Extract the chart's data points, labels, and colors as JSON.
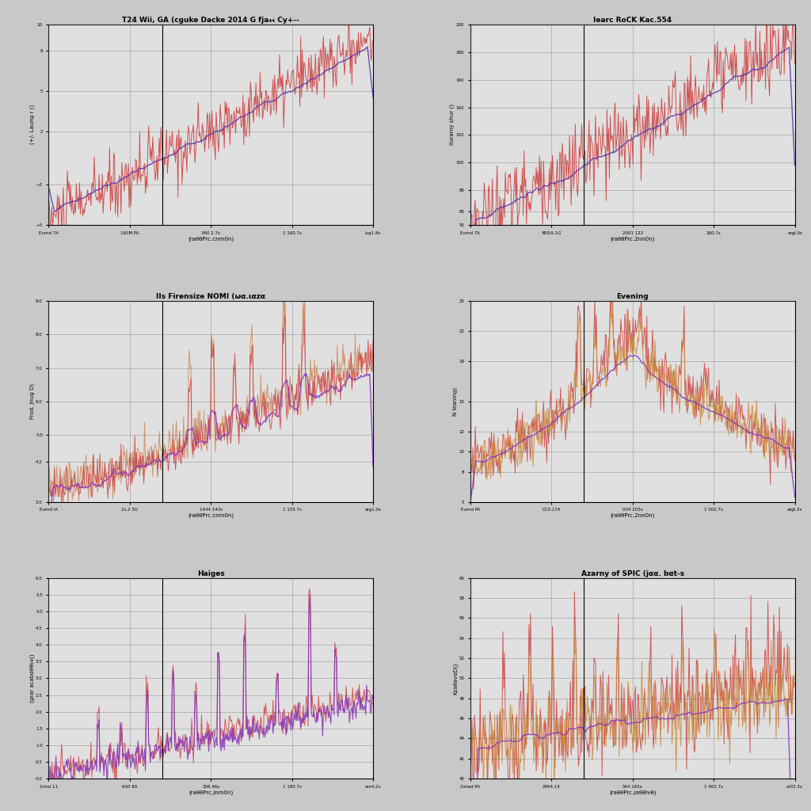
{
  "fig_bg": "#c8c8c8",
  "panel_bg": "#e0e0e0",
  "grid_color": "#666666",
  "plots": [
    {
      "title": "T24 Wii, GA (cguke Dacke 2014 G fja₄₄ Cy+--",
      "ylabel": "(+/- Laung r ()",
      "xlabel": "(raθθPrc.cnm0n)",
      "xtick_labels": [
        "Eurnd 7A",
        "160M PA",
        "360 2.7s",
        "1 160.7s",
        "Lrg1.8s"
      ],
      "ylim": [
        -5,
        10
      ],
      "ytick_vals": [
        -5,
        -2,
        2,
        5,
        8,
        10
      ],
      "line1_color": "#d04040",
      "line2_color": "#5533aa",
      "vline": 0.35
    },
    {
      "title": "Iearc RoCK Kac.554",
      "ylabel": "Iluramy shur ()",
      "xlabel": "(raθθPrc.2nn0n)",
      "xtick_labels": [
        "Eurnd 7A",
        "493/A.1G",
        "2001 122",
        "160.7s",
        "argl.0s"
      ],
      "ylim": [
        55,
        200
      ],
      "ytick_vals": [
        55,
        65,
        80,
        100,
        120,
        140,
        160,
        180,
        200
      ],
      "line1_color": "#d04040",
      "line2_color": "#5533aa",
      "vline": 0.35
    },
    {
      "title": "IIs Firensize NOMI (ωα.ιαzα",
      "ylabel": "Frod. Jnug D)",
      "xlabel": "(raθθPrc.cnm0n)",
      "xtick_labels": [
        "Eurnd IA",
        "2s.2 5G",
        "1444 143s",
        "1 105.7s",
        "arg1.0s"
      ],
      "ylim": [
        3,
        9
      ],
      "ytick_vals": [
        3,
        4.2,
        5,
        6,
        7,
        8,
        9
      ],
      "line1_color": "#cc8855",
      "line2_color": "#d04040",
      "line3_color": "#8833bb",
      "vline": 0.35
    },
    {
      "title": "Evening",
      "ylabel": "N leaning)",
      "xlabel": "(raθθPrc.2nn0n)",
      "xtick_labels": [
        "Eurnd PA",
        "CC0.17A",
        "004 203s",
        "1 002.7s",
        "argt.2s"
      ],
      "ylim": [
        5,
        25
      ],
      "ytick_vals": [
        5,
        8,
        10,
        12,
        15,
        19,
        22,
        25
      ],
      "line1_color": "#d04040",
      "line2_color": "#cc8833",
      "line3_color": "#8833bb",
      "vline": 0.35
    },
    {
      "title": "Haiges",
      "ylabel": "(grar acabαθθιv()",
      "xlabel": "(raθθPrc.Jnm0n)",
      "xtick_labels": [
        "2rind 11",
        "600 8A",
        "206.46s",
        "1 180.7s",
        "oro4.2s"
      ],
      "ylim": [
        0,
        6
      ],
      "ytick_vals": [
        0,
        0.5,
        1.0,
        1.5,
        2.0,
        2.5,
        3.0,
        3.5,
        4.0,
        4.5,
        5.0,
        5.5,
        6.0
      ],
      "line1_color": "#d04040",
      "line2_color": "#8833bb",
      "vline": 0.35
    },
    {
      "title": "Azarny of SPIC (jαα. bαt-s",
      "ylabel": "KzaθavαD()",
      "xlabel": "(raθθPrc.Jαθθivθ)",
      "xtick_labels": [
        "2shed PA",
        "2464.14",
        "544.165s",
        "1 465.7s",
        "or03.3s"
      ],
      "ylim": [
        40,
        60
      ],
      "ytick_vals": [
        40,
        42,
        44,
        46,
        48,
        50,
        52,
        54,
        56,
        58,
        60
      ],
      "line1_color": "#d04040",
      "line2_color": "#cc8833",
      "line3_color": "#8833bb",
      "vline": 0.35
    }
  ]
}
